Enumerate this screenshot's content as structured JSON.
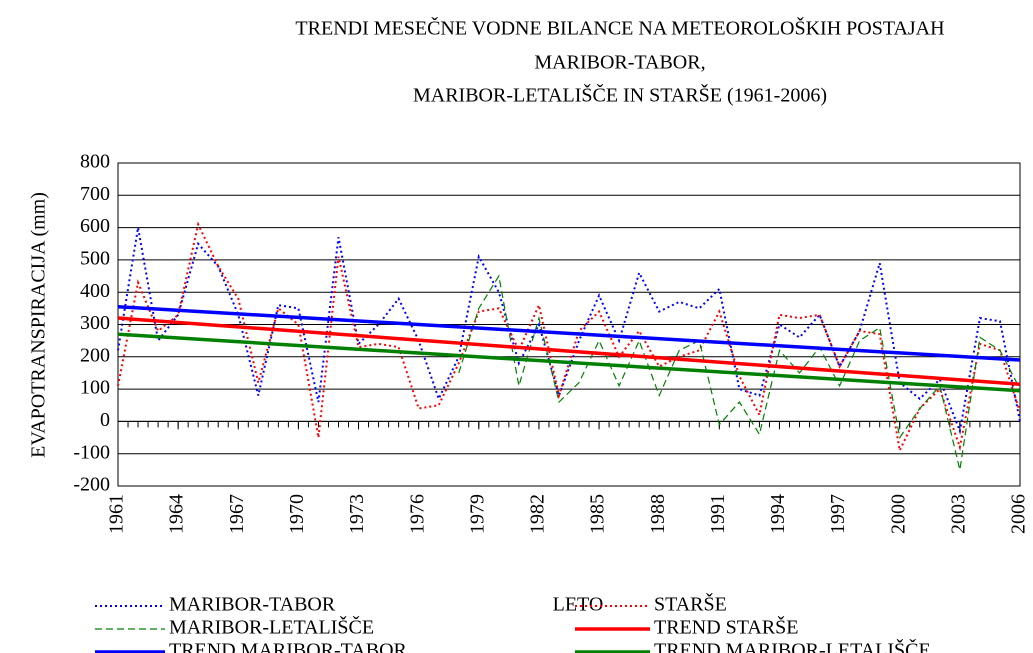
{
  "chart_data": {
    "type": "line",
    "title": [
      "TRENDI MESEČNE VODNE BILANCE NA METEOROLOŠKIH POSTAJAH",
      "MARIBOR-TABOR,",
      "MARIBOR-LETALIŠČE IN STARŠE (1961-2006)"
    ],
    "y_label": "EVAPOTRANSPIRACIJA (mm)",
    "x_label": "LETO",
    "x": [
      1961,
      1962,
      1963,
      1964,
      1965,
      1966,
      1967,
      1968,
      1969,
      1970,
      1971,
      1972,
      1973,
      1974,
      1975,
      1976,
      1977,
      1978,
      1979,
      1980,
      1981,
      1982,
      1983,
      1984,
      1985,
      1986,
      1987,
      1988,
      1989,
      1990,
      1991,
      1992,
      1993,
      1994,
      1995,
      1996,
      1997,
      1998,
      1999,
      2000,
      2001,
      2002,
      2003,
      2004,
      2005,
      2006
    ],
    "series": [
      {
        "name": "MARIBOR-TABOR",
        "color": "#0000ff",
        "style": "dotted",
        "values": [
          220,
          600,
          250,
          330,
          550,
          480,
          330,
          80,
          360,
          350,
          60,
          570,
          240,
          300,
          380,
          250,
          70,
          200,
          510,
          400,
          180,
          300,
          80,
          250,
          390,
          250,
          460,
          340,
          370,
          350,
          410,
          100,
          80,
          300,
          260,
          330,
          170,
          280,
          490,
          120,
          70,
          130,
          -30,
          320,
          310,
          0
        ]
      },
      {
        "name": "STARŠE",
        "color": "#ff0000",
        "style": "dotted",
        "values": [
          110,
          430,
          280,
          330,
          610,
          480,
          380,
          120,
          350,
          300,
          -50,
          510,
          230,
          240,
          230,
          40,
          50,
          180,
          340,
          350,
          220,
          360,
          80,
          280,
          340,
          200,
          280,
          170,
          200,
          220,
          340,
          140,
          20,
          330,
          320,
          330,
          170,
          280,
          270,
          -90,
          40,
          100,
          -80,
          240,
          220,
          30
        ]
      },
      {
        "name": "MARIBOR-LETALIŠČE",
        "color": "#008000",
        "style": "dashed",
        "values": [
          null,
          null,
          null,
          null,
          null,
          null,
          null,
          null,
          null,
          null,
          null,
          null,
          null,
          null,
          null,
          null,
          null,
          150,
          350,
          450,
          110,
          320,
          60,
          120,
          250,
          110,
          250,
          80,
          220,
          250,
          -10,
          60,
          -40,
          220,
          150,
          230,
          110,
          250,
          290,
          -50,
          40,
          110,
          -150,
          260,
          220,
          100
        ]
      },
      {
        "name": "TREND STARŠE",
        "color": "#ff0000",
        "style": "solid",
        "x": [
          1961,
          2006
        ],
        "values": [
          320,
          115
        ]
      },
      {
        "name": "TREND MARIBOR-TABOR",
        "color": "#0000ff",
        "style": "solid",
        "x": [
          1961,
          2006
        ],
        "values": [
          355,
          190
        ]
      },
      {
        "name": "TREND MARIBOR-LETALIŠČE",
        "color": "#008000",
        "style": "solid",
        "x": [
          1961,
          2006
        ],
        "values": [
          270,
          95
        ]
      }
    ],
    "xlim": [
      1961,
      2006
    ],
    "xticks": [
      1961,
      1964,
      1967,
      1970,
      1973,
      1976,
      1979,
      1982,
      1985,
      1988,
      1991,
      1994,
      1997,
      2000,
      2003,
      2006
    ],
    "ylim": [
      -200,
      800
    ],
    "yticks": [
      -200,
      -100,
      0,
      100,
      200,
      300,
      400,
      500,
      600,
      700,
      800
    ],
    "grid": true
  }
}
